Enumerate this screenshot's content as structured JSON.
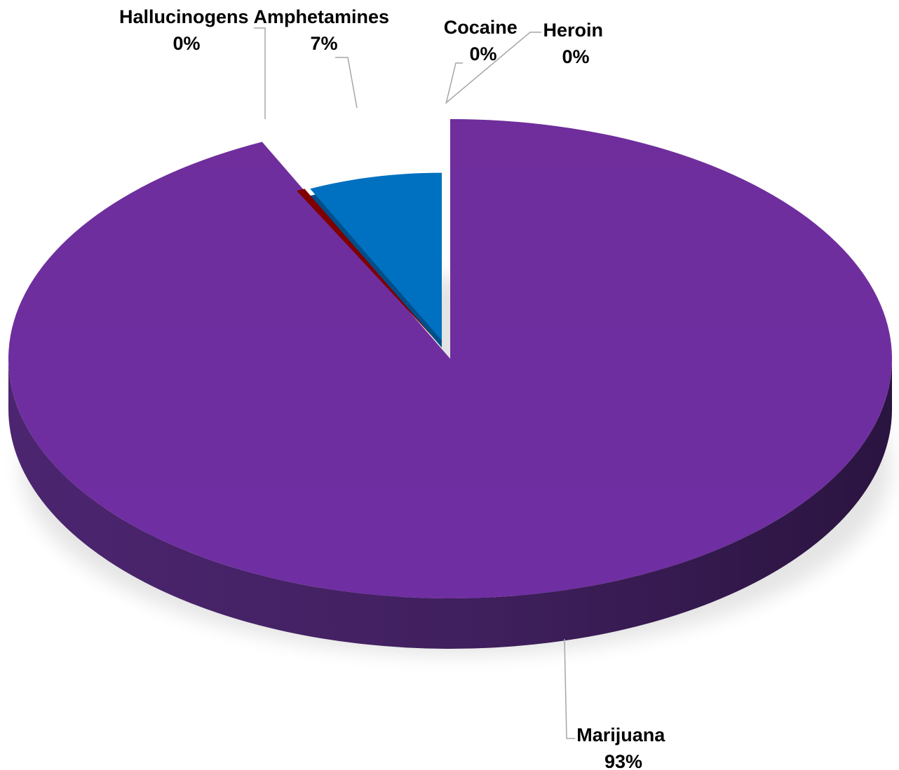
{
  "chart_data": {
    "type": "pie",
    "style": "3d-exploded",
    "slices": [
      {
        "label": "Marijuana",
        "value": 93,
        "value_label": "93%",
        "color": "#7030a0"
      },
      {
        "label": "Amphetamines",
        "value": 7,
        "value_label": "7%",
        "color": "#0070c0"
      },
      {
        "label": "Cocaine",
        "value": 0,
        "value_label": "0%",
        "color": "#8064a2"
      },
      {
        "label": "Heroin",
        "value": 0,
        "value_label": "0%",
        "color": "#4bacc6"
      },
      {
        "label": "Hallucinogens",
        "value": 0,
        "value_label": "0%",
        "color": "#800000"
      }
    ],
    "legend": "none"
  }
}
